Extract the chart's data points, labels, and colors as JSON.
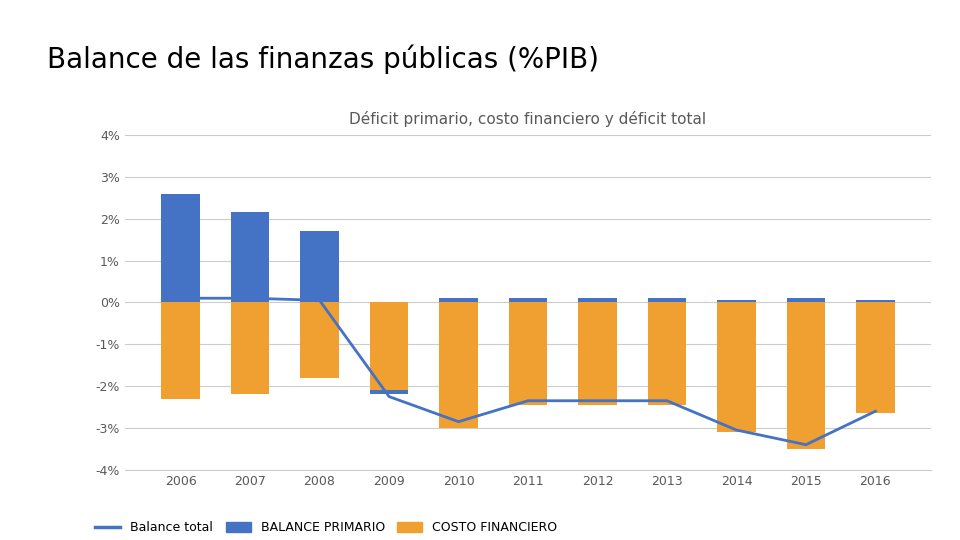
{
  "title": "Balance de las finanzas públicas (%PIB)",
  "subtitle": "Déficit primario, costo financiero y déficit total",
  "years": [
    2006,
    2007,
    2008,
    2009,
    2010,
    2011,
    2012,
    2013,
    2014,
    2015,
    2016
  ],
  "balance_primario": [
    2.6,
    2.15,
    1.7,
    -0.1,
    0.1,
    0.1,
    0.1,
    0.1,
    0.05,
    0.1,
    0.05
  ],
  "costo_financiero": [
    -2.3,
    -2.2,
    -1.8,
    -2.2,
    -3.0,
    -2.45,
    -2.45,
    -2.45,
    -3.1,
    -3.5,
    -2.65
  ],
  "balance_total": [
    0.1,
    0.1,
    0.05,
    -2.25,
    -2.85,
    -2.35,
    -2.35,
    -2.35,
    -3.05,
    -3.4,
    -2.6
  ],
  "balance_primario_color": "#4472c4",
  "costo_financiero_color": "#f0a030",
  "balance_total_color": "#4472c4",
  "ylim": [
    -4,
    4
  ],
  "yticks": [
    -4,
    -3,
    -2,
    -1,
    0,
    1,
    2,
    3,
    4
  ],
  "ytick_labels": [
    "-4%",
    "-3%",
    "-2%",
    "-1%",
    "0%",
    "1%",
    "2%",
    "3%",
    "4%"
  ],
  "background_color": "#ffffff",
  "title_fontsize": 20,
  "subtitle_fontsize": 11,
  "tick_fontsize": 9,
  "legend_fontsize": 9,
  "bar_width": 0.55
}
